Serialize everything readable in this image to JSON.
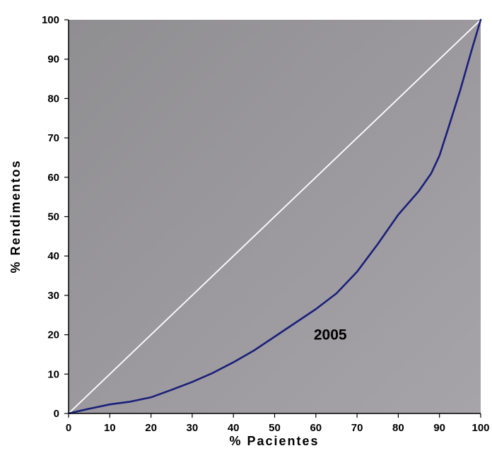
{
  "chart_data": {
    "type": "line",
    "title": "",
    "xlabel": "% Pacientes",
    "ylabel": "% Rendimentos",
    "xlim": [
      0,
      100
    ],
    "ylim": [
      0,
      100
    ],
    "xticks": [
      0,
      10,
      20,
      30,
      40,
      50,
      60,
      70,
      80,
      90,
      100
    ],
    "yticks": [
      0,
      10,
      20,
      30,
      40,
      50,
      60,
      70,
      80,
      90,
      100
    ],
    "grid": false,
    "legend": "none",
    "background_color": "#9c9a9e",
    "series": [
      {
        "color": "#ffffff",
        "x": [
          0,
          100
        ],
        "y": [
          0,
          100
        ]
      },
      {
        "color": "#1a1f7a",
        "x": [
          0,
          5,
          10,
          15,
          20,
          25,
          30,
          35,
          40,
          45,
          50,
          55,
          60,
          65,
          70,
          75,
          80,
          85,
          88,
          90,
          92,
          95,
          98,
          100
        ],
        "y": [
          0,
          1.2,
          2.3,
          3.0,
          4.1,
          6.0,
          8.0,
          10.3,
          13.0,
          16.0,
          19.5,
          23.0,
          26.5,
          30.5,
          36.0,
          43.0,
          50.5,
          56.5,
          61.0,
          65.5,
          72.0,
          82.0,
          93.0,
          100
        ]
      }
    ],
    "annotations": [
      {
        "text": "2005",
        "x": 63.5,
        "y": 20
      }
    ]
  }
}
